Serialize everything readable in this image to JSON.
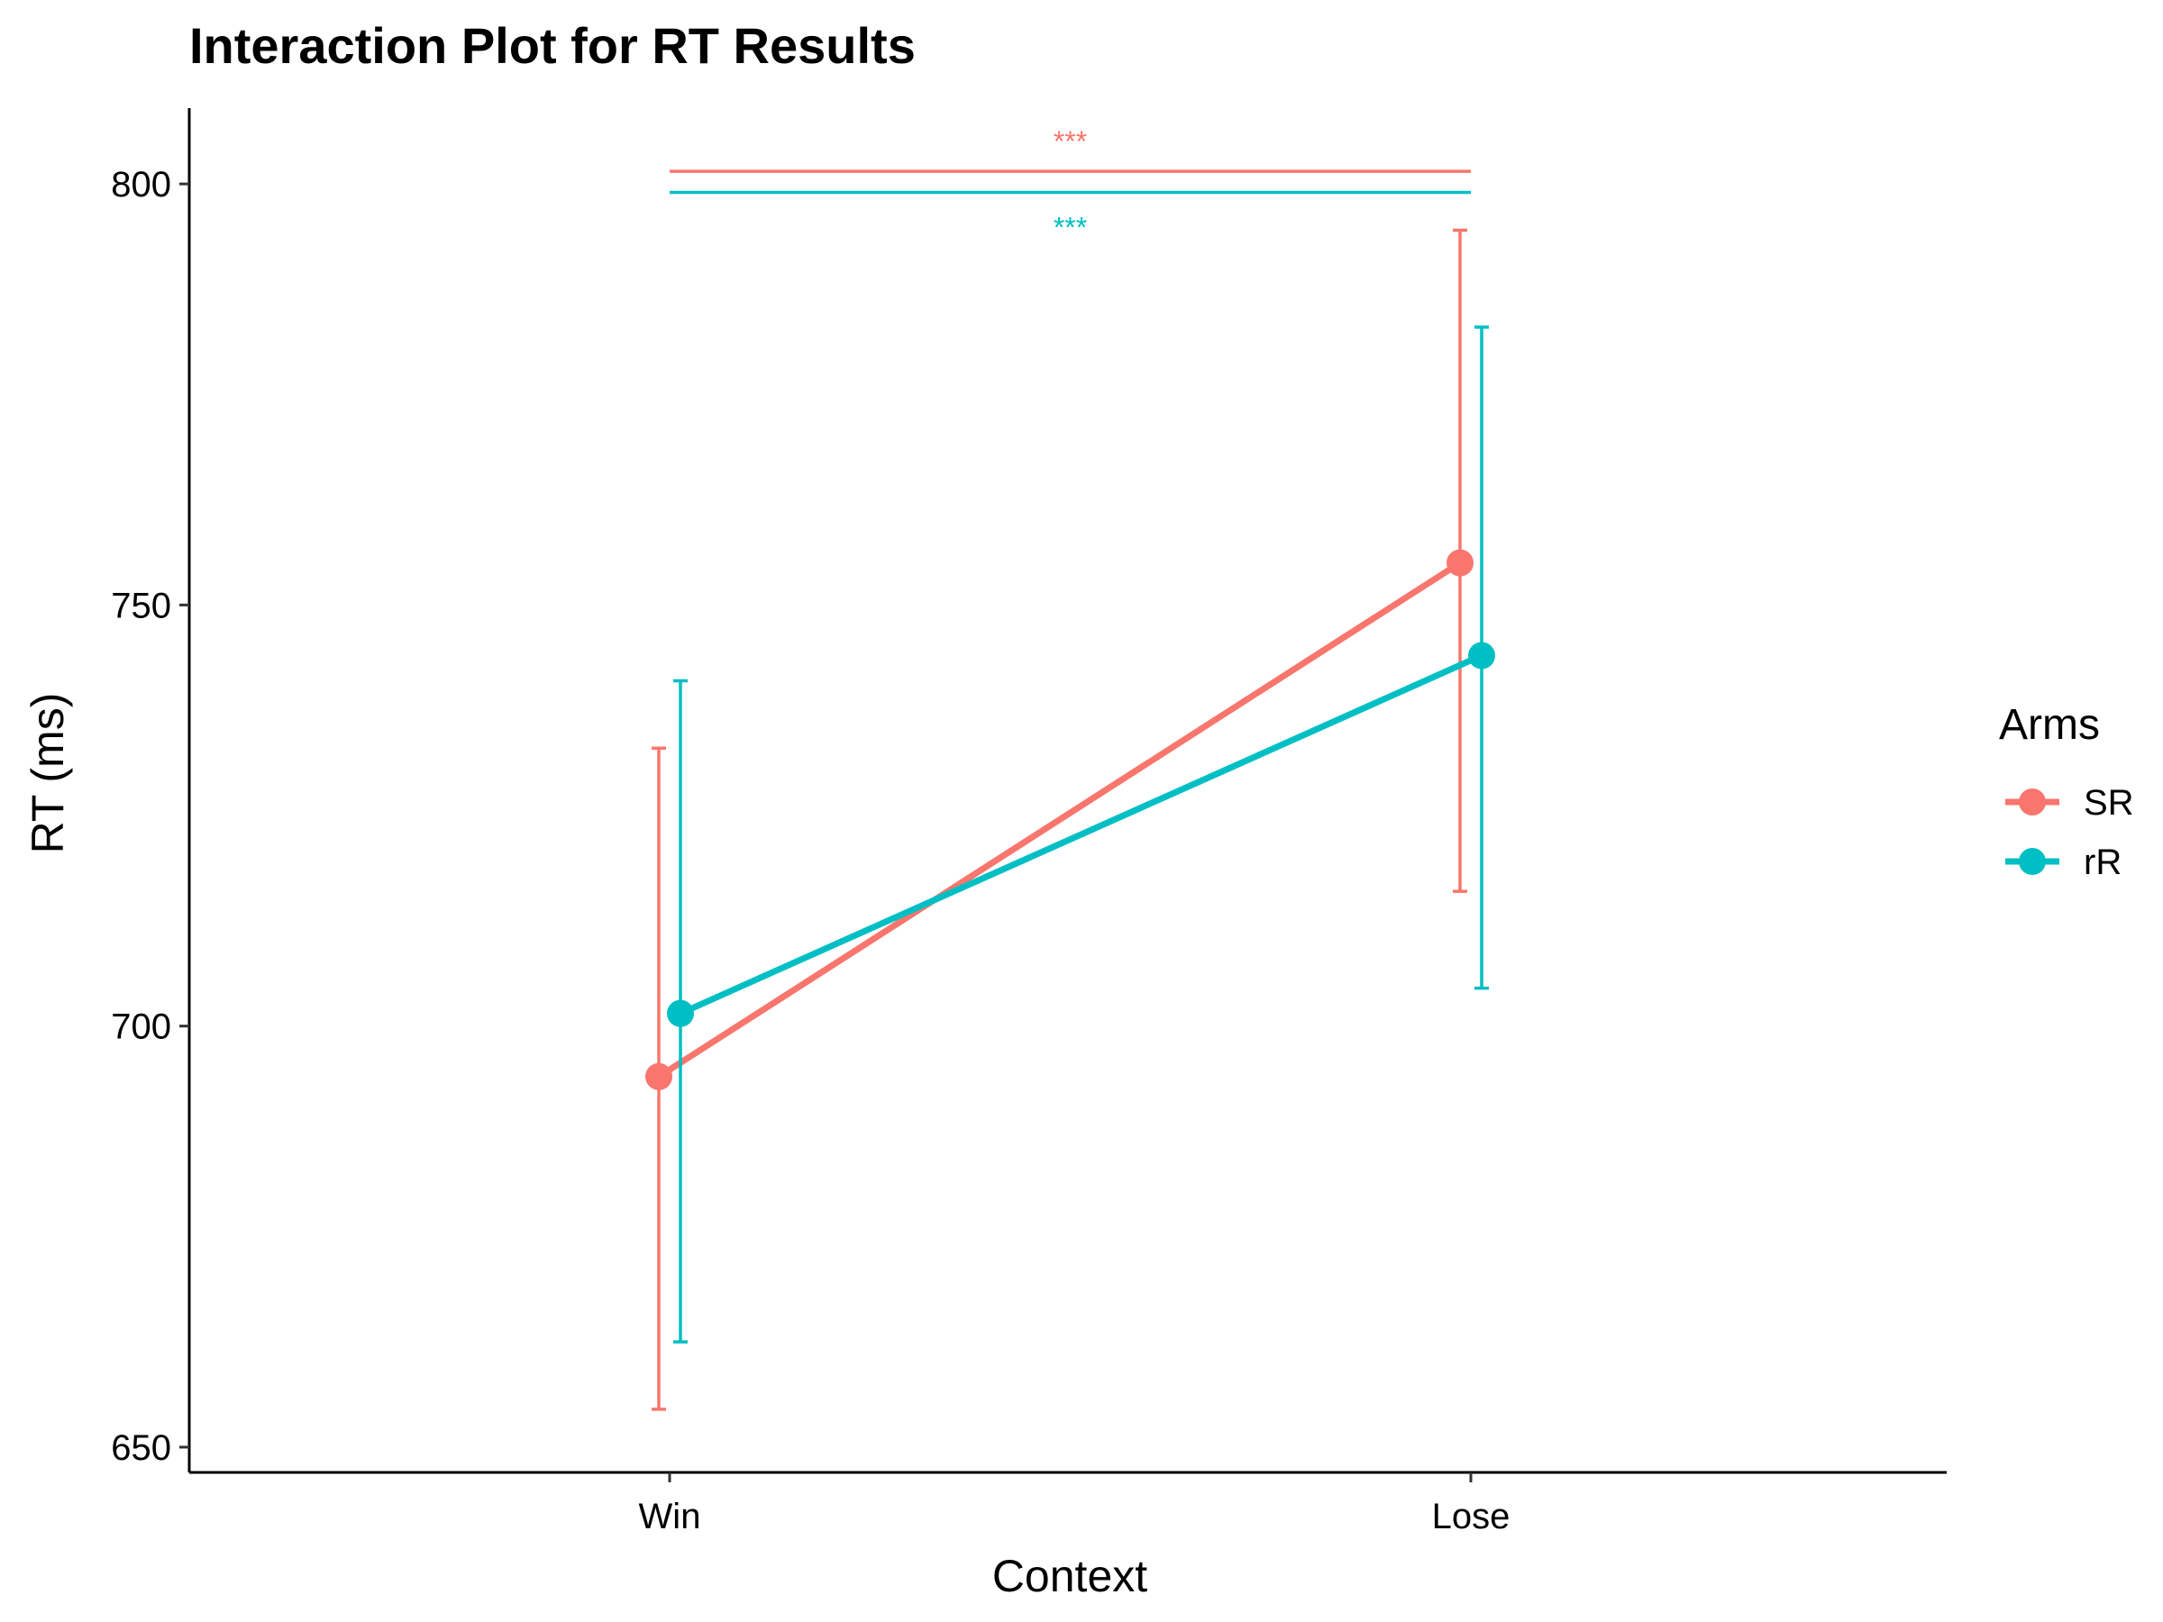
{
  "chart_data": {
    "type": "line",
    "title": "Interaction Plot for RT Results",
    "xlabel": "Context",
    "ylabel": "RT (ms)",
    "categories": [
      "Win",
      "Lose"
    ],
    "ylim": [
      647,
      809
    ],
    "yticks": [
      650,
      700,
      750,
      800
    ],
    "ytick_labels": [
      "650",
      "700",
      "750",
      "800"
    ],
    "grid": false,
    "legend": {
      "title": "Arms",
      "placement": "right"
    },
    "series": [
      {
        "name": "SR",
        "color": "#F8766D",
        "values": [
          694,
          755
        ],
        "ci_low": [
          654.5,
          716
        ],
        "ci_high": [
          733,
          794.5
        ]
      },
      {
        "name": "rR",
        "color": "#00BFC4",
        "values": [
          701.5,
          744
        ],
        "ci_low": [
          662.5,
          704.5
        ],
        "ci_high": [
          741,
          783
        ]
      }
    ],
    "significance": [
      {
        "series": "SR",
        "label": "***",
        "y": 801.5,
        "color": "#F8766D"
      },
      {
        "series": "rR",
        "label": "***",
        "y": 799,
        "color": "#00BFC4"
      }
    ]
  }
}
